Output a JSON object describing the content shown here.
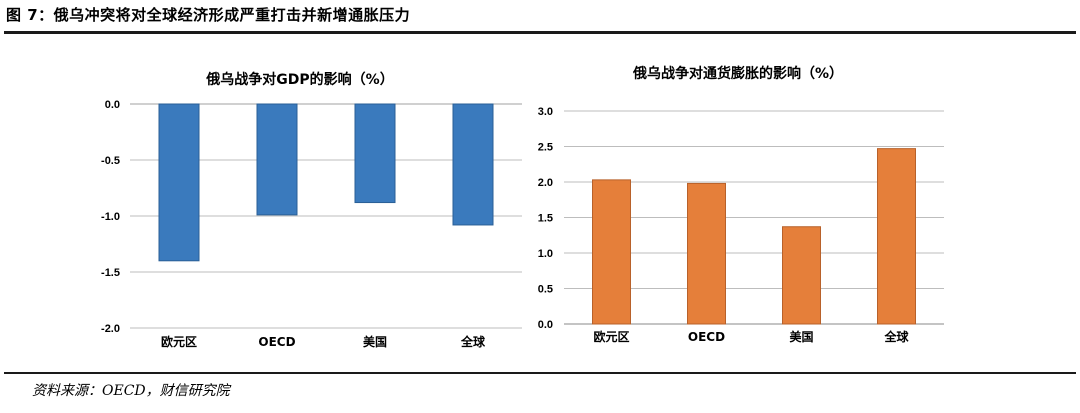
{
  "figure": {
    "title": "图 7：俄乌冲突将对全球经济形成严重打击并新增通胀压力",
    "source": "资料来源：OECD，财信研究院"
  },
  "chart_data": [
    {
      "type": "bar",
      "title": "俄乌战争对GDP的影响（%）",
      "categories": [
        "欧元区",
        "OECD",
        "美国",
        "全球"
      ],
      "values": [
        -1.4,
        -0.99,
        -0.88,
        -1.08
      ],
      "ylim": [
        -2.0,
        0.0
      ],
      "yticks": [
        "0.0",
        "-0.5",
        "-1.0",
        "-1.5",
        "-2.0"
      ],
      "grid": true,
      "color": "#3a7abd"
    },
    {
      "type": "bar",
      "title": "俄乌战争对通货膨胀的影响（%）",
      "categories": [
        "欧元区",
        "OECD",
        "美国",
        "全球"
      ],
      "values": [
        2.03,
        1.98,
        1.37,
        2.47
      ],
      "ylim": [
        0.0,
        3.0
      ],
      "yticks": [
        "3.0",
        "2.5",
        "2.0",
        "1.5",
        "1.0",
        "0.5",
        "0.0"
      ],
      "grid": true,
      "color": "#e57f3a"
    }
  ]
}
